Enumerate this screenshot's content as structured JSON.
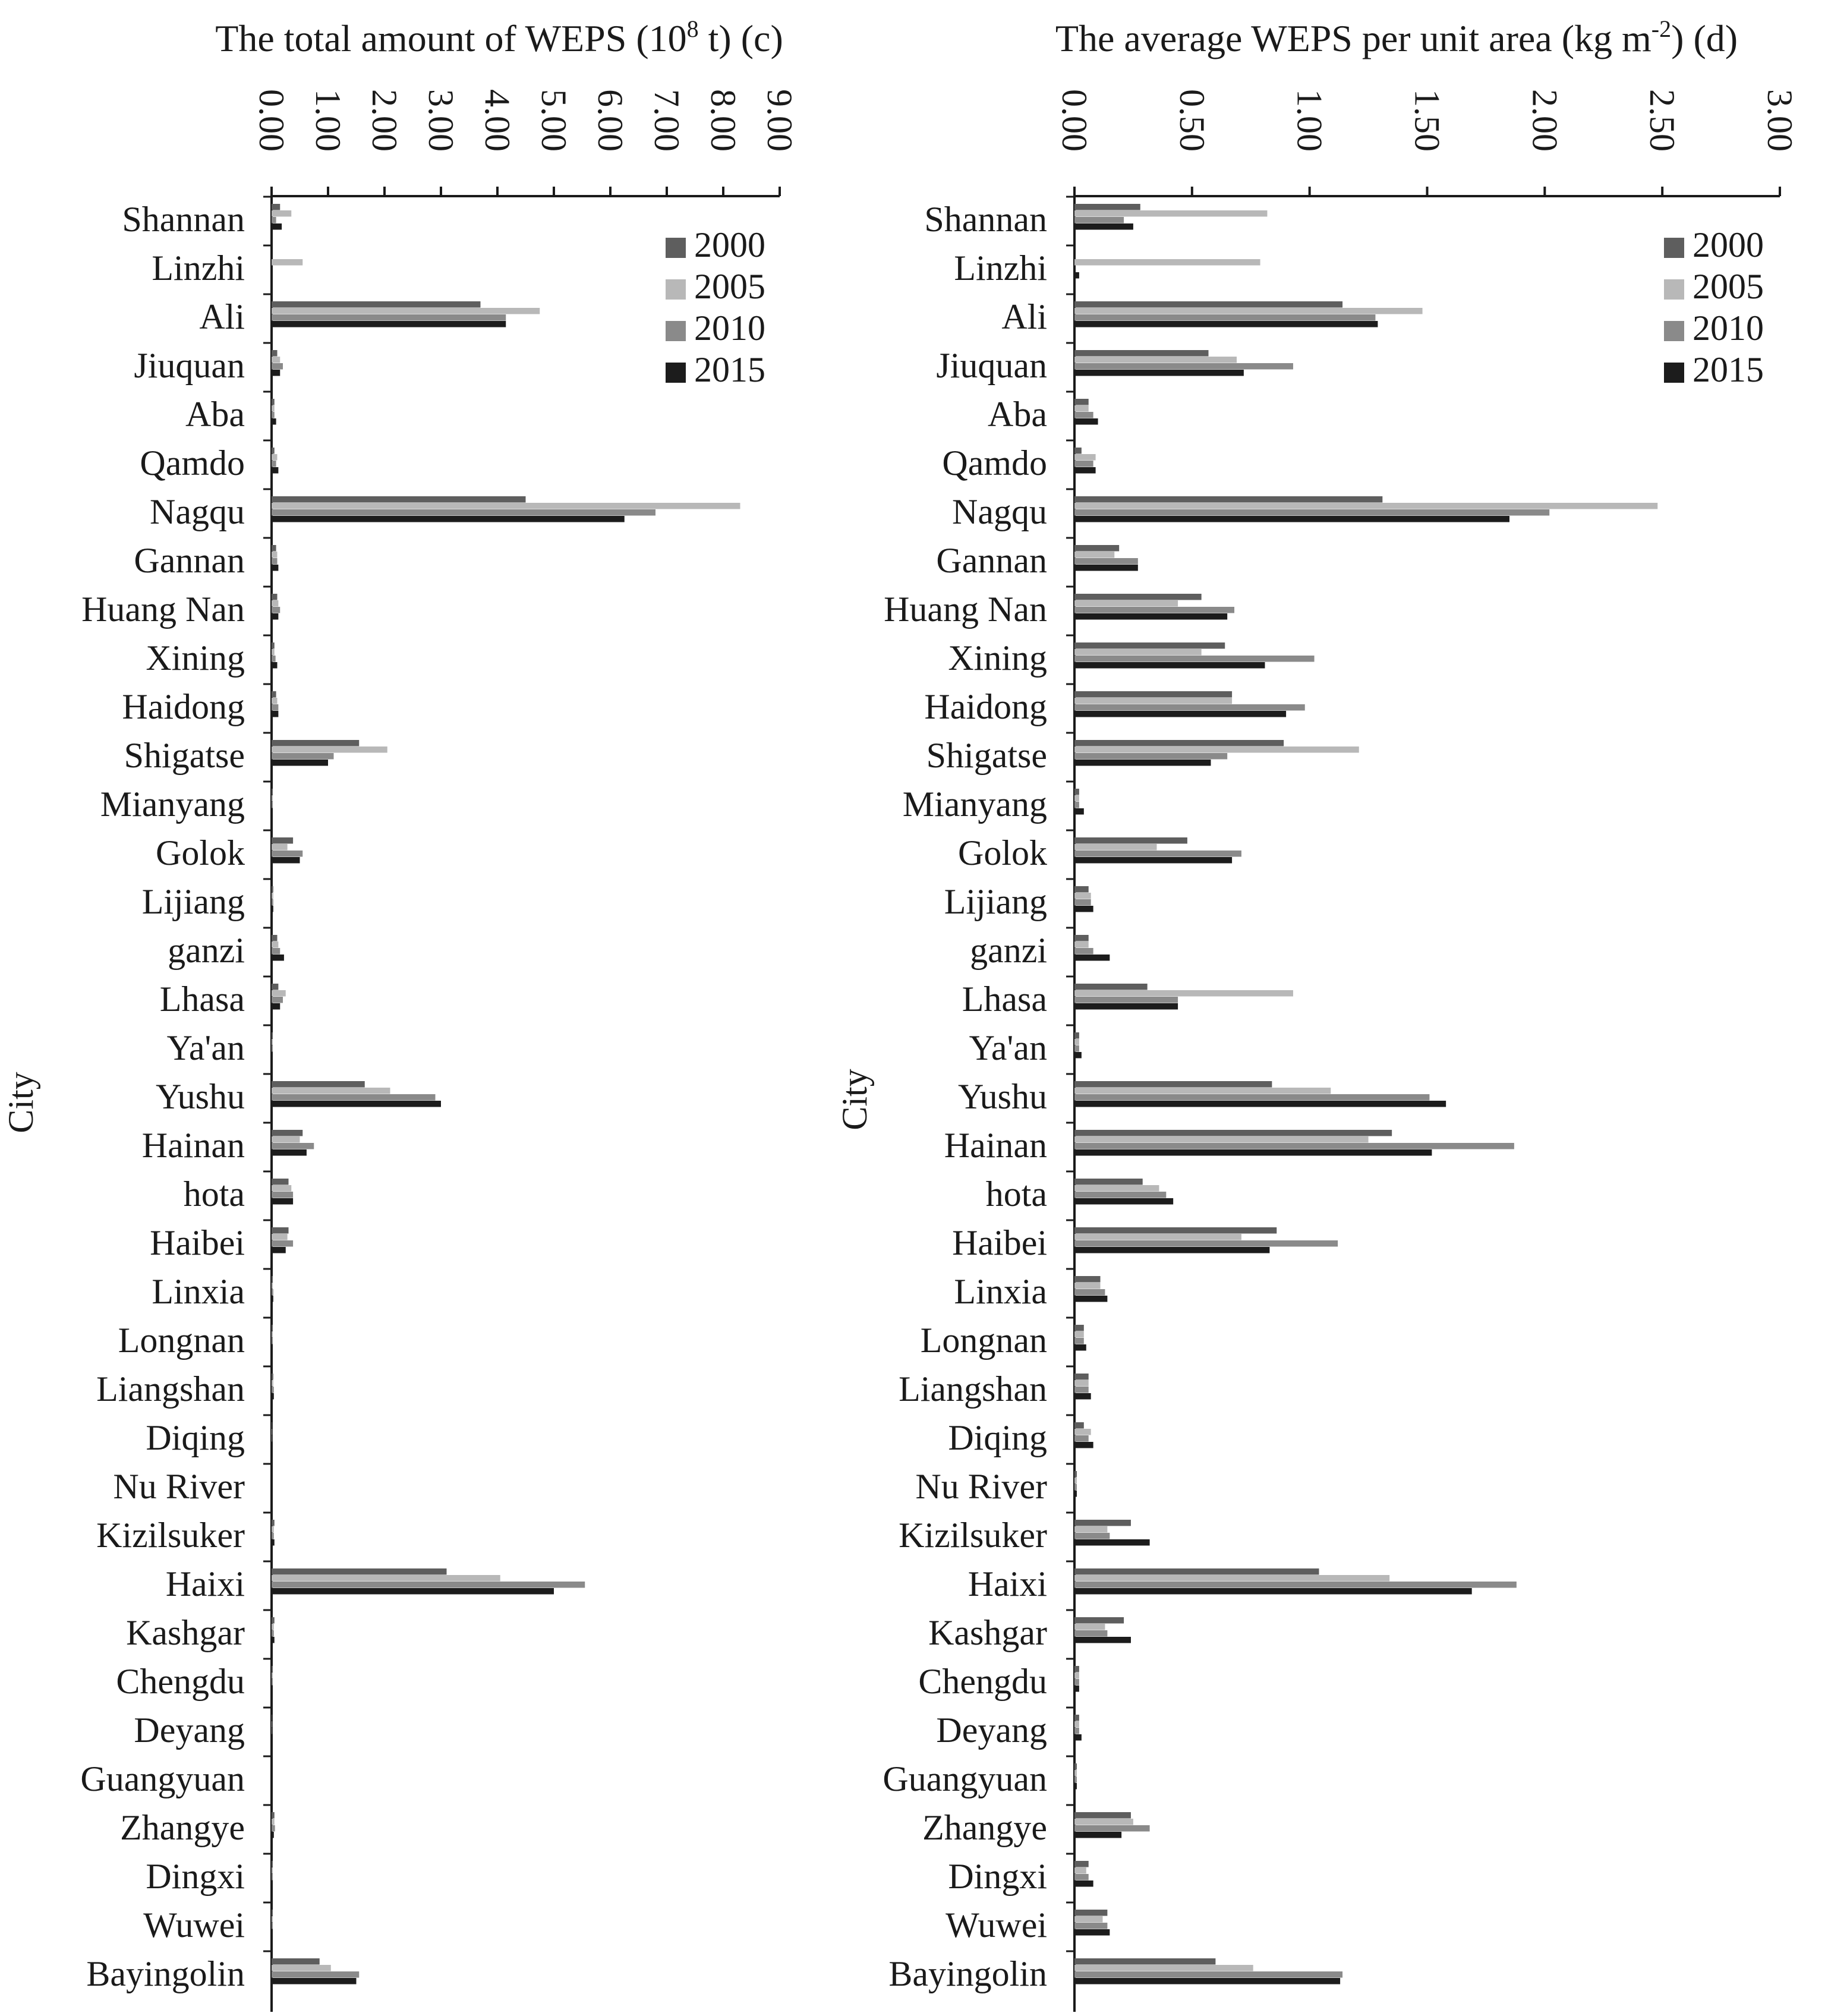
{
  "chart_data": [
    {
      "type": "bar",
      "orientation": "horizontal",
      "panel": "(c)",
      "title": "The total amount of WEPS (10⁸ t)",
      "title_base": "The total amount of  WEPS  (10",
      "title_sup": "8",
      "title_unit_end": " t)",
      "xlabel": "",
      "ylabel": "City",
      "xlim": [
        0,
        9
      ],
      "xticks": [
        "0.00",
        "1.00",
        "2.00",
        "3.00",
        "4.00",
        "5.00",
        "6.00",
        "7.00",
        "8.00",
        "9.00"
      ],
      "legend_position": "top-right",
      "categories": [
        "Shannan",
        "Linzhi",
        "Ali",
        "Jiuquan",
        "Aba",
        "Qamdo",
        "Nagqu",
        "Gannan",
        "Huang Nan",
        "Xining",
        "Haidong",
        "Shigatse",
        "Mianyang",
        "Golok",
        "Lijiang",
        "ganzi",
        "Lhasa",
        "Ya'an",
        "Yushu",
        "Hainan",
        "hota",
        "Haibei",
        "Linxia",
        "Longnan",
        "Liangshan",
        "Diqing",
        "Nu River",
        "Kizilsuker",
        "Haixi",
        "Kashgar",
        "Chengdu",
        "Deyang",
        "Guangyuan",
        "Zhangye",
        "Dingxi",
        "Wuwei",
        "Bayingolin"
      ],
      "series": [
        {
          "name": "2000",
          "values": [
            0.15,
            0.0,
            3.7,
            0.1,
            0.05,
            0.05,
            4.5,
            0.08,
            0.1,
            0.05,
            0.08,
            1.55,
            0.02,
            0.38,
            0.03,
            0.1,
            0.12,
            0.02,
            1.65,
            0.55,
            0.3,
            0.3,
            0.02,
            0.02,
            0.03,
            0.01,
            0.0,
            0.05,
            3.1,
            0.05,
            0.02,
            0.01,
            0.0,
            0.05,
            0.02,
            0.02,
            0.85
          ]
        },
        {
          "name": "2005",
          "values": [
            0.35,
            0.55,
            4.75,
            0.15,
            0.05,
            0.1,
            8.3,
            0.1,
            0.12,
            0.05,
            0.1,
            2.05,
            0.02,
            0.28,
            0.03,
            0.12,
            0.25,
            0.02,
            2.1,
            0.5,
            0.35,
            0.28,
            0.02,
            0.02,
            0.03,
            0.01,
            0.0,
            0.04,
            4.05,
            0.04,
            0.02,
            0.01,
            0.0,
            0.05,
            0.02,
            0.02,
            1.05
          ]
        },
        {
          "name": "2010",
          "values": [
            0.08,
            0.0,
            4.15,
            0.2,
            0.05,
            0.08,
            6.8,
            0.1,
            0.15,
            0.07,
            0.12,
            1.1,
            0.02,
            0.55,
            0.03,
            0.15,
            0.2,
            0.02,
            2.9,
            0.75,
            0.38,
            0.38,
            0.03,
            0.02,
            0.04,
            0.01,
            0.0,
            0.04,
            5.55,
            0.04,
            0.02,
            0.01,
            0.0,
            0.06,
            0.02,
            0.02,
            1.55
          ]
        },
        {
          "name": "2015",
          "values": [
            0.18,
            0.0,
            4.15,
            0.15,
            0.08,
            0.12,
            6.25,
            0.12,
            0.12,
            0.1,
            0.12,
            1.0,
            0.02,
            0.5,
            0.03,
            0.22,
            0.15,
            0.02,
            3.0,
            0.62,
            0.38,
            0.25,
            0.03,
            0.02,
            0.04,
            0.01,
            0.0,
            0.05,
            5.0,
            0.05,
            0.02,
            0.01,
            0.0,
            0.04,
            0.02,
            0.02,
            1.5
          ]
        }
      ]
    },
    {
      "type": "bar",
      "orientation": "horizontal",
      "panel": "(d)",
      "title": "The average WEPS per unit area (kg m⁻²)",
      "title_base": "The average  WEPS per unit area  (kg m",
      "title_sup": "-2",
      "title_unit_end": ")",
      "xlabel": "",
      "ylabel": "City",
      "xlim": [
        0,
        3
      ],
      "xticks": [
        "0.00",
        "0.50",
        "1.00",
        "1.50",
        "2.00",
        "2.50",
        "3.00"
      ],
      "legend_position": "top-right",
      "categories": [
        "Shannan",
        "Linzhi",
        "Ali",
        "Jiuquan",
        "Aba",
        "Qamdo",
        "Nagqu",
        "Gannan",
        "Huang Nan",
        "Xining",
        "Haidong",
        "Shigatse",
        "Mianyang",
        "Golok",
        "Lijiang",
        "ganzi",
        "Lhasa",
        "Ya'an",
        "Yushu",
        "Hainan",
        "hota",
        "Haibei",
        "Linxia",
        "Longnan",
        "Liangshan",
        "Diqing",
        "Nu River",
        "Kizilsuker",
        "Haixi",
        "Kashgar",
        "Chengdu",
        "Deyang",
        "Guangyuan",
        "Zhangye",
        "Dingxi",
        "Wuwei",
        "Bayingolin"
      ],
      "series": [
        {
          "name": "2000",
          "values": [
            0.28,
            0.0,
            1.14,
            0.57,
            0.06,
            0.03,
            1.31,
            0.19,
            0.54,
            0.64,
            0.67,
            0.89,
            0.02,
            0.48,
            0.06,
            0.06,
            0.31,
            0.02,
            0.84,
            1.35,
            0.29,
            0.86,
            0.11,
            0.04,
            0.06,
            0.04,
            0.01,
            0.24,
            1.04,
            0.21,
            0.02,
            0.02,
            0.01,
            0.24,
            0.06,
            0.14,
            0.6
          ]
        },
        {
          "name": "2005",
          "values": [
            0.82,
            0.79,
            1.48,
            0.69,
            0.06,
            0.09,
            2.48,
            0.17,
            0.44,
            0.54,
            0.67,
            1.21,
            0.02,
            0.35,
            0.07,
            0.06,
            0.93,
            0.02,
            1.09,
            1.25,
            0.36,
            0.71,
            0.11,
            0.04,
            0.06,
            0.07,
            0.01,
            0.14,
            1.34,
            0.13,
            0.02,
            0.02,
            0.01,
            0.25,
            0.05,
            0.12,
            0.76
          ]
        },
        {
          "name": "2010",
          "values": [
            0.21,
            0.0,
            1.28,
            0.93,
            0.08,
            0.08,
            2.02,
            0.27,
            0.68,
            1.02,
            0.98,
            0.65,
            0.02,
            0.71,
            0.07,
            0.08,
            0.44,
            0.02,
            1.51,
            1.87,
            0.39,
            1.12,
            0.13,
            0.04,
            0.06,
            0.06,
            0.01,
            0.15,
            1.88,
            0.14,
            0.02,
            0.02,
            0.01,
            0.32,
            0.06,
            0.14,
            1.14
          ]
        },
        {
          "name": "2015",
          "values": [
            0.25,
            0.02,
            1.29,
            0.72,
            0.1,
            0.09,
            1.85,
            0.27,
            0.65,
            0.81,
            0.9,
            0.58,
            0.04,
            0.67,
            0.08,
            0.15,
            0.44,
            0.03,
            1.58,
            1.52,
            0.42,
            0.83,
            0.14,
            0.05,
            0.07,
            0.08,
            0.01,
            0.32,
            1.69,
            0.24,
            0.02,
            0.03,
            0.01,
            0.2,
            0.08,
            0.15,
            1.13
          ]
        }
      ]
    }
  ],
  "colors": {
    "2000": "#5e5e5e",
    "2005": "#b8b8b8",
    "2010": "#8a8a8a",
    "2015": "#1c1c1c",
    "axis": "#1a1a1a"
  }
}
